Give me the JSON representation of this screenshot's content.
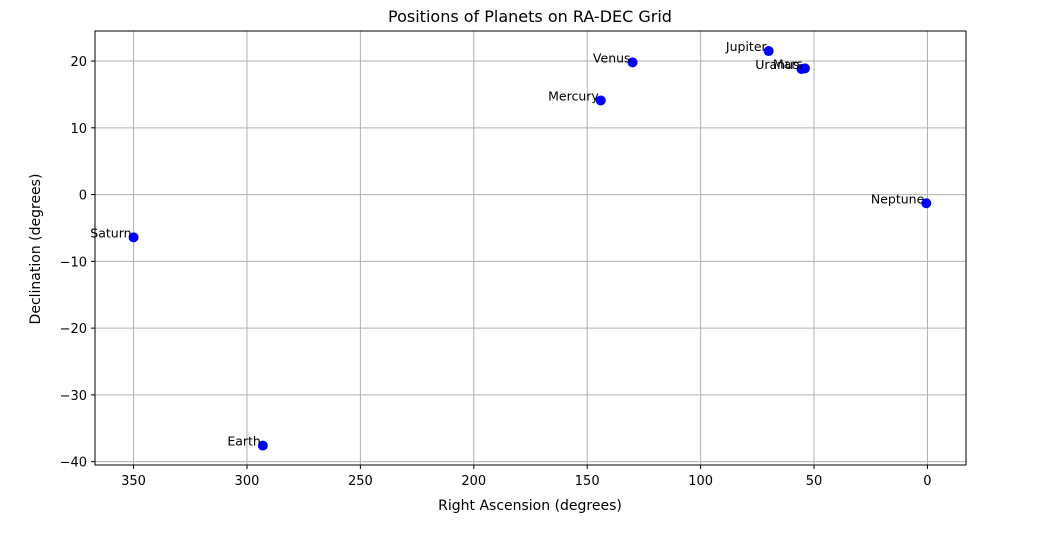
{
  "chart_data": {
    "type": "scatter",
    "title": "Positions of Planets on RA-DEC Grid",
    "xlabel": "Right Ascension (degrees)",
    "ylabel": "Declination (degrees)",
    "xlim": [
      367,
      -17
    ],
    "ylim": [
      -40.5,
      24.5
    ],
    "x_inverted": true,
    "xticks": [
      350,
      300,
      250,
      200,
      150,
      100,
      50,
      0
    ],
    "xtick_labels": [
      "350",
      "300",
      "250",
      "200",
      "150",
      "100",
      "50",
      "0"
    ],
    "yticks": [
      20,
      10,
      0,
      -10,
      -20,
      -30,
      -40
    ],
    "ytick_labels": [
      "20",
      "10",
      "0",
      "−10",
      "−20",
      "−30",
      "−40"
    ],
    "grid": true,
    "marker_color": "#0000ff",
    "points": [
      {
        "label": "Mercury",
        "ra": 144,
        "dec": 14.1
      },
      {
        "label": "Venus",
        "ra": 130,
        "dec": 19.8
      },
      {
        "label": "Earth",
        "ra": 293,
        "dec": -37.6
      },
      {
        "label": "Mars",
        "ra": 54,
        "dec": 18.9
      },
      {
        "label": "Jupiter",
        "ra": 70,
        "dec": 21.5
      },
      {
        "label": "Saturn",
        "ra": 350,
        "dec": -6.4
      },
      {
        "label": "Uranus",
        "ra": 55.5,
        "dec": 18.8
      },
      {
        "label": "Neptune",
        "ra": 0.5,
        "dec": -1.3
      }
    ]
  }
}
